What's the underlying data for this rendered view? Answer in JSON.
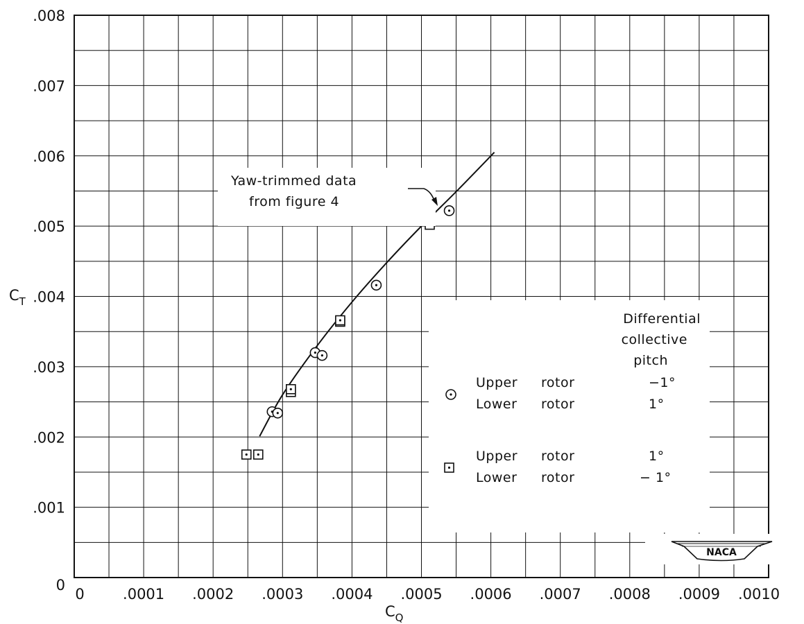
{
  "chart_data": {
    "type": "scatter",
    "xlabel": "C",
    "xlabel_sub": "Q",
    "ylabel": "C",
    "ylabel_sub": "T",
    "xlim": [
      0,
      0.001
    ],
    "ylim": [
      0,
      0.008
    ],
    "grid": true,
    "x_ticks": [
      {
        "value": 0,
        "label": "0"
      },
      {
        "value": 0.0001,
        "label": ".0001"
      },
      {
        "value": 0.0002,
        "label": ".0002"
      },
      {
        "value": 0.0003,
        "label": ".0003"
      },
      {
        "value": 0.0004,
        "label": ".0004"
      },
      {
        "value": 0.0005,
        "label": ".0005"
      },
      {
        "value": 0.0006,
        "label": ".0006"
      },
      {
        "value": 0.0007,
        "label": ".0007"
      },
      {
        "value": 0.0008,
        "label": ".0008"
      },
      {
        "value": 0.0009,
        "label": ".0009"
      },
      {
        "value": 0.001,
        "label": ".0010"
      }
    ],
    "y_ticks": [
      {
        "value": 0,
        "label": "0"
      },
      {
        "value": 0.001,
        "label": ".001"
      },
      {
        "value": 0.002,
        "label": ".002"
      },
      {
        "value": 0.003,
        "label": ".003"
      },
      {
        "value": 0.004,
        "label": ".004"
      },
      {
        "value": 0.005,
        "label": ".005"
      },
      {
        "value": 0.006,
        "label": ".006"
      },
      {
        "value": 0.007,
        "label": ".007"
      },
      {
        "value": 0.008,
        "label": ".008"
      }
    ],
    "series": [
      {
        "marker": "circle-dot",
        "points": [
          {
            "x": 0.000285,
            "y": 0.00236
          },
          {
            "x": 0.000293,
            "y": 0.00234
          },
          {
            "x": 0.000347,
            "y": 0.0032
          },
          {
            "x": 0.000357,
            "y": 0.00316
          },
          {
            "x": 0.000435,
            "y": 0.00416
          },
          {
            "x": 0.00054,
            "y": 0.00522
          }
        ]
      },
      {
        "marker": "square-dot",
        "points": [
          {
            "x": 0.000248,
            "y": 0.00175
          },
          {
            "x": 0.000265,
            "y": 0.00175
          },
          {
            "x": 0.000312,
            "y": 0.00264
          },
          {
            "x": 0.000312,
            "y": 0.00268
          },
          {
            "x": 0.000383,
            "y": 0.00364
          },
          {
            "x": 0.000383,
            "y": 0.00366
          },
          {
            "x": 0.000512,
            "y": 0.00502
          }
        ]
      }
    ],
    "fitted_curve": {
      "points": [
        {
          "x": 0.000267,
          "y": 0.00201
        },
        {
          "x": 0.0003,
          "y": 0.0026
        },
        {
          "x": 0.00035,
          "y": 0.0033
        },
        {
          "x": 0.0004,
          "y": 0.00392
        },
        {
          "x": 0.00045,
          "y": 0.00448
        },
        {
          "x": 0.0005,
          "y": 0.005
        },
        {
          "x": 0.00055,
          "y": 0.00549
        },
        {
          "x": 0.000605,
          "y": 0.00605
        }
      ]
    },
    "annotation": {
      "lines": [
        "Yaw-trimmed data",
        "from figure 4"
      ],
      "arrow_target": {
        "x": 0.000536,
        "y": 0.00527
      }
    },
    "legend": {
      "placement": "bottom-right",
      "title_lines": [
        "Differential",
        "collective",
        "pitch"
      ],
      "entries": [
        {
          "marker": "circle-dot",
          "rows": [
            {
              "rotor": "Upper",
              "word": "rotor",
              "pitch": "−1°"
            },
            {
              "rotor": "Lower",
              "word": "rotor",
              "pitch": "1°"
            }
          ]
        },
        {
          "marker": "square-dot",
          "rows": [
            {
              "rotor": "Upper",
              "word": "rotor",
              "pitch": "1°"
            },
            {
              "rotor": "Lower",
              "word": "rotor",
              "pitch": "− 1°"
            }
          ]
        }
      ]
    },
    "logo": "NACA"
  }
}
